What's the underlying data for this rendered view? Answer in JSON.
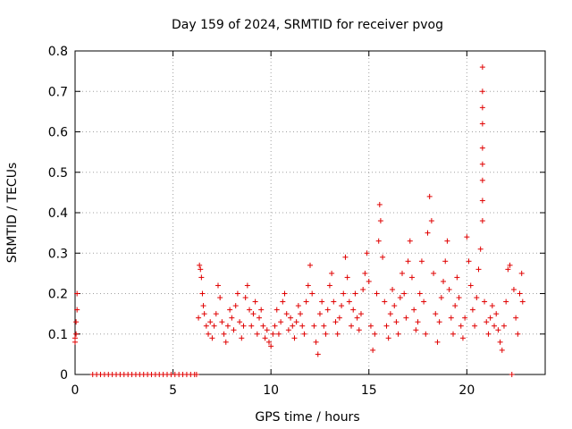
{
  "chart_data": {
    "type": "scatter",
    "title": "Day 159 of 2024, SRMTID for receiver pvog",
    "xlabel": "GPS time / hours",
    "ylabel": "SRMTID / TECUs",
    "xlim": [
      0,
      24
    ],
    "ylim": [
      0,
      0.8
    ],
    "xticks": [
      0,
      5,
      10,
      15,
      20
    ],
    "yticks": [
      0,
      0.1,
      0.2,
      0.3,
      0.4,
      0.5,
      0.6,
      0.7,
      0.8
    ],
    "xtick_labels": [
      "0",
      "5",
      "10",
      "15",
      "20"
    ],
    "ytick_labels": [
      "0",
      "0.1",
      "0.2",
      "0.3",
      "0.4",
      "0.5",
      "0.6",
      "0.7",
      "0.8"
    ],
    "grid": true,
    "marker": "+",
    "color": "#e00000",
    "series": [
      {
        "name": "SRMTID",
        "points": [
          [
            0.0,
            0.08
          ],
          [
            0.0,
            0.09
          ],
          [
            0.05,
            0.1
          ],
          [
            0.05,
            0.13
          ],
          [
            0.1,
            0.16
          ],
          [
            0.1,
            0.2
          ],
          [
            0.9,
            0
          ],
          [
            1.1,
            0
          ],
          [
            1.3,
            0
          ],
          [
            1.5,
            0
          ],
          [
            1.7,
            0
          ],
          [
            1.9,
            0
          ],
          [
            2.1,
            0
          ],
          [
            2.3,
            0
          ],
          [
            2.5,
            0
          ],
          [
            2.7,
            0
          ],
          [
            2.9,
            0
          ],
          [
            3.1,
            0
          ],
          [
            3.3,
            0
          ],
          [
            3.5,
            0
          ],
          [
            3.7,
            0
          ],
          [
            3.9,
            0
          ],
          [
            4.1,
            0
          ],
          [
            4.3,
            0
          ],
          [
            4.5,
            0
          ],
          [
            4.7,
            0
          ],
          [
            4.9,
            0
          ],
          [
            5.1,
            0
          ],
          [
            5.3,
            0
          ],
          [
            5.5,
            0
          ],
          [
            5.7,
            0
          ],
          [
            5.9,
            0
          ],
          [
            6.1,
            0
          ],
          [
            6.2,
            0
          ],
          [
            6.3,
            0.14
          ],
          [
            6.35,
            0.27
          ],
          [
            6.4,
            0.26
          ],
          [
            6.45,
            0.24
          ],
          [
            6.5,
            0.2
          ],
          [
            6.55,
            0.17
          ],
          [
            6.6,
            0.15
          ],
          [
            6.7,
            0.12
          ],
          [
            6.8,
            0.1
          ],
          [
            6.9,
            0.13
          ],
          [
            7.0,
            0.09
          ],
          [
            7.1,
            0.12
          ],
          [
            7.2,
            0.15
          ],
          [
            7.3,
            0.22
          ],
          [
            7.4,
            0.19
          ],
          [
            7.5,
            0.13
          ],
          [
            7.6,
            0.1
          ],
          [
            7.7,
            0.08
          ],
          [
            7.8,
            0.12
          ],
          [
            7.9,
            0.16
          ],
          [
            8.0,
            0.14
          ],
          [
            8.1,
            0.11
          ],
          [
            8.2,
            0.17
          ],
          [
            8.3,
            0.2
          ],
          [
            8.4,
            0.13
          ],
          [
            8.5,
            0.09
          ],
          [
            8.6,
            0.12
          ],
          [
            8.7,
            0.19
          ],
          [
            8.8,
            0.22
          ],
          [
            8.9,
            0.16
          ],
          [
            9.0,
            0.12
          ],
          [
            9.1,
            0.15
          ],
          [
            9.2,
            0.18
          ],
          [
            9.3,
            0.1
          ],
          [
            9.4,
            0.14
          ],
          [
            9.5,
            0.16
          ],
          [
            9.6,
            0.12
          ],
          [
            9.7,
            0.09
          ],
          [
            9.8,
            0.11
          ],
          [
            9.9,
            0.08
          ],
          [
            10.0,
            0.07
          ],
          [
            10.1,
            0.1
          ],
          [
            10.2,
            0.12
          ],
          [
            10.3,
            0.16
          ],
          [
            10.4,
            0.1
          ],
          [
            10.5,
            0.13
          ],
          [
            10.6,
            0.18
          ],
          [
            10.7,
            0.2
          ],
          [
            10.8,
            0.15
          ],
          [
            10.9,
            0.11
          ],
          [
            11.0,
            0.14
          ],
          [
            11.1,
            0.12
          ],
          [
            11.2,
            0.09
          ],
          [
            11.3,
            0.13
          ],
          [
            11.4,
            0.17
          ],
          [
            11.5,
            0.15
          ],
          [
            11.6,
            0.12
          ],
          [
            11.7,
            0.1
          ],
          [
            11.8,
            0.18
          ],
          [
            11.9,
            0.22
          ],
          [
            12.0,
            0.27
          ],
          [
            12.1,
            0.2
          ],
          [
            12.2,
            0.12
          ],
          [
            12.3,
            0.08
          ],
          [
            12.4,
            0.05
          ],
          [
            12.5,
            0.15
          ],
          [
            12.6,
            0.18
          ],
          [
            12.7,
            0.12
          ],
          [
            12.8,
            0.1
          ],
          [
            12.9,
            0.16
          ],
          [
            13.0,
            0.22
          ],
          [
            13.1,
            0.25
          ],
          [
            13.2,
            0.18
          ],
          [
            13.3,
            0.13
          ],
          [
            13.4,
            0.1
          ],
          [
            13.5,
            0.14
          ],
          [
            13.6,
            0.17
          ],
          [
            13.7,
            0.2
          ],
          [
            13.8,
            0.29
          ],
          [
            13.9,
            0.24
          ],
          [
            14.0,
            0.18
          ],
          [
            14.1,
            0.12
          ],
          [
            14.2,
            0.16
          ],
          [
            14.3,
            0.2
          ],
          [
            14.4,
            0.14
          ],
          [
            14.5,
            0.11
          ],
          [
            14.6,
            0.15
          ],
          [
            14.7,
            0.21
          ],
          [
            14.8,
            0.25
          ],
          [
            14.9,
            0.3
          ],
          [
            15.0,
            0.23
          ],
          [
            15.1,
            0.12
          ],
          [
            15.2,
            0.06
          ],
          [
            15.3,
            0.1
          ],
          [
            15.4,
            0.2
          ],
          [
            15.5,
            0.33
          ],
          [
            15.55,
            0.42
          ],
          [
            15.6,
            0.38
          ],
          [
            15.7,
            0.29
          ],
          [
            15.8,
            0.18
          ],
          [
            15.9,
            0.12
          ],
          [
            16.0,
            0.09
          ],
          [
            16.1,
            0.15
          ],
          [
            16.2,
            0.21
          ],
          [
            16.3,
            0.17
          ],
          [
            16.4,
            0.13
          ],
          [
            16.5,
            0.1
          ],
          [
            16.6,
            0.19
          ],
          [
            16.7,
            0.25
          ],
          [
            16.8,
            0.2
          ],
          [
            16.9,
            0.14
          ],
          [
            17.0,
            0.28
          ],
          [
            17.1,
            0.33
          ],
          [
            17.2,
            0.24
          ],
          [
            17.3,
            0.16
          ],
          [
            17.4,
            0.11
          ],
          [
            17.5,
            0.13
          ],
          [
            17.6,
            0.2
          ],
          [
            17.7,
            0.28
          ],
          [
            17.8,
            0.18
          ],
          [
            17.9,
            0.1
          ],
          [
            18.0,
            0.35
          ],
          [
            18.1,
            0.44
          ],
          [
            18.2,
            0.38
          ],
          [
            18.3,
            0.25
          ],
          [
            18.4,
            0.15
          ],
          [
            18.5,
            0.08
          ],
          [
            18.6,
            0.13
          ],
          [
            18.7,
            0.19
          ],
          [
            18.8,
            0.23
          ],
          [
            18.9,
            0.28
          ],
          [
            19.0,
            0.33
          ],
          [
            19.1,
            0.21
          ],
          [
            19.2,
            0.14
          ],
          [
            19.3,
            0.1
          ],
          [
            19.4,
            0.17
          ],
          [
            19.5,
            0.24
          ],
          [
            19.6,
            0.19
          ],
          [
            19.7,
            0.12
          ],
          [
            19.8,
            0.09
          ],
          [
            19.9,
            0.14
          ],
          [
            20.0,
            0.34
          ],
          [
            20.1,
            0.28
          ],
          [
            20.2,
            0.22
          ],
          [
            20.3,
            0.16
          ],
          [
            20.4,
            0.12
          ],
          [
            20.5,
            0.19
          ],
          [
            20.6,
            0.26
          ],
          [
            20.7,
            0.31
          ],
          [
            20.8,
            0.38
          ],
          [
            20.8,
            0.43
          ],
          [
            20.8,
            0.48
          ],
          [
            20.8,
            0.52
          ],
          [
            20.8,
            0.56
          ],
          [
            20.8,
            0.62
          ],
          [
            20.8,
            0.66
          ],
          [
            20.8,
            0.7
          ],
          [
            20.8,
            0.76
          ],
          [
            20.9,
            0.18
          ],
          [
            21.0,
            0.13
          ],
          [
            21.1,
            0.1
          ],
          [
            21.2,
            0.14
          ],
          [
            21.3,
            0.17
          ],
          [
            21.4,
            0.12
          ],
          [
            21.5,
            0.15
          ],
          [
            21.6,
            0.11
          ],
          [
            21.7,
            0.08
          ],
          [
            21.8,
            0.06
          ],
          [
            21.9,
            0.12
          ],
          [
            22.0,
            0.18
          ],
          [
            22.1,
            0.26
          ],
          [
            22.2,
            0.27
          ],
          [
            22.3,
            0.0
          ],
          [
            22.4,
            0.21
          ],
          [
            22.5,
            0.14
          ],
          [
            22.6,
            0.1
          ],
          [
            22.7,
            0.2
          ],
          [
            22.8,
            0.25
          ],
          [
            22.85,
            0.18
          ]
        ]
      }
    ]
  }
}
